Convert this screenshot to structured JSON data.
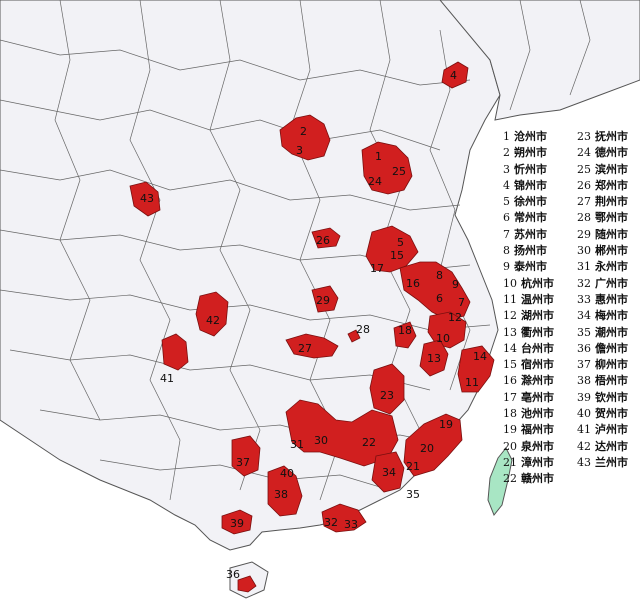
{
  "colors": {
    "highlight": "#d11f1f",
    "highlight_stroke": "#7a0f0f",
    "taiwan": "#a8e6c4",
    "boundary": "#555555",
    "province_boundary": "#333333",
    "land": "#f2f2f6",
    "sea": "#ffffff"
  },
  "legend": [
    {
      "num": "1",
      "name": "沧州市"
    },
    {
      "num": "2",
      "name": "朔州市"
    },
    {
      "num": "3",
      "name": "忻州市"
    },
    {
      "num": "4",
      "name": "锦州市"
    },
    {
      "num": "5",
      "name": "徐州市"
    },
    {
      "num": "6",
      "name": "常州市"
    },
    {
      "num": "7",
      "name": "苏州市"
    },
    {
      "num": "8",
      "name": "扬州市"
    },
    {
      "num": "9",
      "name": "泰州市"
    },
    {
      "num": "10",
      "name": "杭州市"
    },
    {
      "num": "11",
      "name": "温州市"
    },
    {
      "num": "12",
      "name": "湖州市"
    },
    {
      "num": "13",
      "name": "衢州市"
    },
    {
      "num": "14",
      "name": "台州市"
    },
    {
      "num": "15",
      "name": "宿州市"
    },
    {
      "num": "16",
      "name": "滁州市"
    },
    {
      "num": "17",
      "name": "亳州市"
    },
    {
      "num": "18",
      "name": "池州市"
    },
    {
      "num": "19",
      "name": "福州市"
    },
    {
      "num": "20",
      "name": "泉州市"
    },
    {
      "num": "21",
      "name": "漳州市"
    },
    {
      "num": "22",
      "name": "赣州市"
    },
    {
      "num": "23",
      "name": "抚州市"
    },
    {
      "num": "24",
      "name": "德州市"
    },
    {
      "num": "25",
      "name": "滨州市"
    },
    {
      "num": "26",
      "name": "郑州市"
    },
    {
      "num": "27",
      "name": "荆州市"
    },
    {
      "num": "28",
      "name": "鄂州市"
    },
    {
      "num": "29",
      "name": "随州市"
    },
    {
      "num": "30",
      "name": "郴州市"
    },
    {
      "num": "31",
      "name": "永州市"
    },
    {
      "num": "32",
      "name": "广州市"
    },
    {
      "num": "33",
      "name": "惠州市"
    },
    {
      "num": "34",
      "name": "梅州市"
    },
    {
      "num": "35",
      "name": "潮州市"
    },
    {
      "num": "36",
      "name": "儋州市"
    },
    {
      "num": "37",
      "name": "柳州市"
    },
    {
      "num": "38",
      "name": "梧州市"
    },
    {
      "num": "39",
      "name": "钦州市"
    },
    {
      "num": "40",
      "name": "贺州市"
    },
    {
      "num": "41",
      "name": "泸州市"
    },
    {
      "num": "42",
      "name": "达州市"
    },
    {
      "num": "43",
      "name": "兰州市"
    }
  ],
  "region_labels": [
    "1",
    "2",
    "3",
    "4",
    "5",
    "6",
    "7",
    "8",
    "9",
    "10",
    "11",
    "12",
    "13",
    "14",
    "15",
    "16",
    "17",
    "18",
    "19",
    "20",
    "21",
    "22",
    "23",
    "24",
    "25",
    "26",
    "27",
    "28",
    "29",
    "30",
    "31",
    "32",
    "33",
    "34",
    "35",
    "36",
    "37",
    "38",
    "39",
    "40",
    "41",
    "42",
    "43"
  ]
}
